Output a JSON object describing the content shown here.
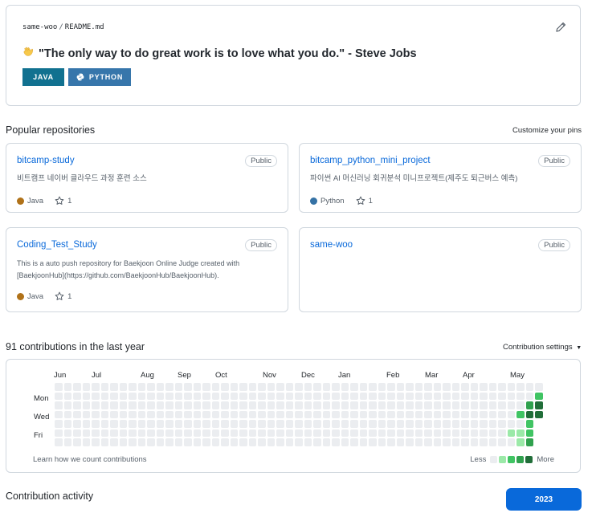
{
  "readme": {
    "owner": "same-woo",
    "separator": "/",
    "file": "README.md",
    "quote": "\"The only way to do great work is to love what you do.\" - Steve Jobs",
    "badges": [
      {
        "label": "JAVA",
        "color": "#117190"
      },
      {
        "label": "PYTHON",
        "color": "#3776ab"
      }
    ]
  },
  "popular": {
    "title": "Popular repositories",
    "customize": "Customize your pins",
    "repos": [
      {
        "name": "bitcamp-study",
        "visibility": "Public",
        "description": "비트캠프 네이버 클라우드 과정 훈련 소스",
        "language": "Java",
        "lang_color": "#b07219",
        "stars": "1"
      },
      {
        "name": "bitcamp_python_mini_project",
        "visibility": "Public",
        "description": "파이썬 AI 머신러닝 회귀분석 미니프로젝트(제주도 퇴근버스 예측)",
        "language": "Python",
        "lang_color": "#3572A5",
        "stars": "1"
      },
      {
        "name": "Coding_Test_Study",
        "visibility": "Public",
        "description": "This is a auto push repository for Baekjoon Online Judge created with [BaekjoonHub](https://github.com/BaekjoonHub/BaekjoonHub).",
        "language": "Java",
        "lang_color": "#b07219",
        "stars": "1"
      },
      {
        "name": "same-woo",
        "visibility": "Public"
      }
    ]
  },
  "contributions": {
    "title": "91 contributions in the last year",
    "settings": "Contribution settings",
    "months": [
      "Jun",
      "Jul",
      "Aug",
      "Sep",
      "Oct",
      "Nov",
      "Dec",
      "Jan",
      "Feb",
      "Mar",
      "Apr",
      "May"
    ],
    "days": [
      "Mon",
      "Wed",
      "Fri"
    ],
    "learn": "Learn how we count contributions",
    "legend_less": "Less",
    "legend_more": "More",
    "level_colors": [
      "#ebedf0",
      "#9be9a8",
      "#40c463",
      "#30a14e",
      "#216e39"
    ],
    "active_cells": [
      {
        "week": 49,
        "day": 5,
        "level": 1
      },
      {
        "week": 50,
        "day": 3,
        "level": 2
      },
      {
        "week": 50,
        "day": 5,
        "level": 1
      },
      {
        "week": 50,
        "day": 6,
        "level": 1
      },
      {
        "week": 51,
        "day": 2,
        "level": 3
      },
      {
        "week": 51,
        "day": 3,
        "level": 4
      },
      {
        "week": 51,
        "day": 4,
        "level": 2
      },
      {
        "week": 51,
        "day": 5,
        "level": 2
      },
      {
        "week": 51,
        "day": 6,
        "level": 3
      },
      {
        "week": 52,
        "day": 1,
        "level": 2
      },
      {
        "week": 52,
        "day": 2,
        "level": 4
      },
      {
        "week": 52,
        "day": 3,
        "level": 4
      }
    ]
  },
  "activity": {
    "title": "Contribution activity",
    "year": "2023"
  }
}
